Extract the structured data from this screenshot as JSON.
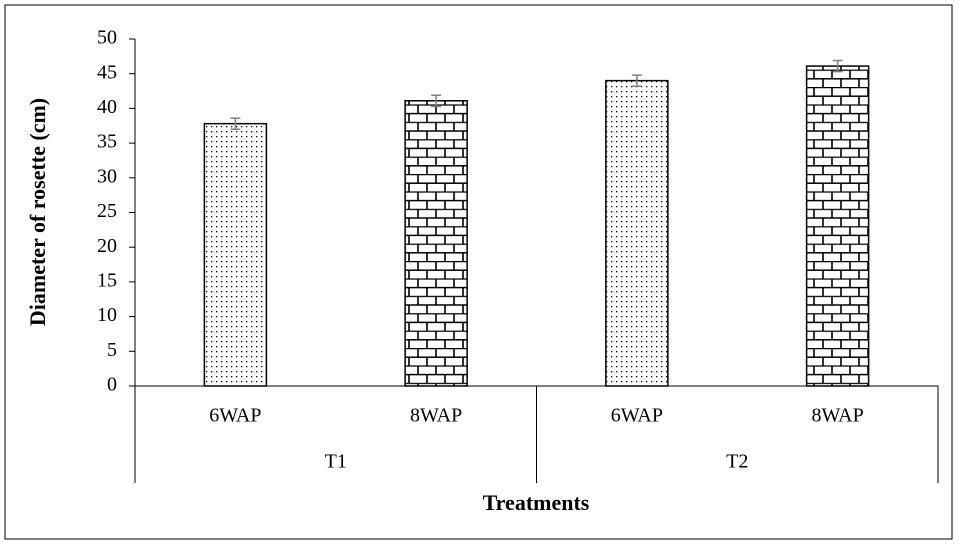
{
  "chart_data": {
    "type": "bar",
    "y_label": "Diameter of rosette (cm)",
    "x_label": "Treatments",
    "groups": [
      {
        "label": "T1",
        "categories": [
          "6WAP",
          "8WAP"
        ],
        "values": [
          37.8,
          41.1
        ],
        "errors": [
          0.8,
          0.8
        ]
      },
      {
        "label": "T2",
        "categories": [
          "6WAP",
          "8WAP"
        ],
        "values": [
          44,
          46.1
        ],
        "errors": [
          0.8,
          0.8
        ]
      }
    ],
    "patterns": [
      "dots",
      "bricks"
    ],
    "error_color": "#808080",
    "ylim": [
      0,
      50
    ],
    "yticks": [
      0,
      5,
      10,
      15,
      20,
      25,
      30,
      35,
      40,
      45,
      50
    ]
  }
}
